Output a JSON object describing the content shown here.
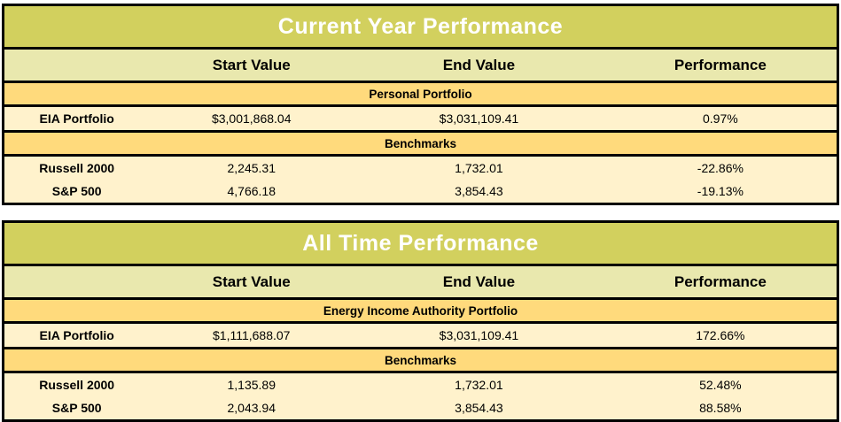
{
  "colors": {
    "title_bar": "#D2D05E",
    "title_text": "#FFFFFF",
    "column_header_bg": "#E9E8AE",
    "section_header_bg": "#FFDA7C",
    "data_row_bg": "#FFF2CC",
    "border": "#000000"
  },
  "tables": [
    {
      "title": "Current Year Performance",
      "columns": [
        "",
        "Start Value",
        "End Value",
        "Performance"
      ],
      "sections": [
        {
          "header": "Personal Portfolio",
          "rows": [
            {
              "label": "EIA Portfolio",
              "start": "$3,001,868.04",
              "end": "$3,031,109.41",
              "performance": "0.97%"
            }
          ]
        },
        {
          "header": "Benchmarks",
          "rows": [
            {
              "label": "Russell 2000",
              "start": "2,245.31",
              "end": "1,732.01",
              "performance": "-22.86%"
            },
            {
              "label": "S&P 500",
              "start": "4,766.18",
              "end": "3,854.43",
              "performance": "-19.13%"
            }
          ]
        }
      ]
    },
    {
      "title": "All Time Performance",
      "columns": [
        "",
        "Start Value",
        "End Value",
        "Performance"
      ],
      "sections": [
        {
          "header": "Energy Income Authority Portfolio",
          "rows": [
            {
              "label": "EIA Portfolio",
              "start": "$1,111,688.07",
              "end": "$3,031,109.41",
              "performance": "172.66%"
            }
          ]
        },
        {
          "header": "Benchmarks",
          "rows": [
            {
              "label": "Russell 2000",
              "start": "1,135.89",
              "end": "1,732.01",
              "performance": "52.48%"
            },
            {
              "label": "S&P 500",
              "start": "2,043.94",
              "end": "3,854.43",
              "performance": "88.58%"
            }
          ]
        }
      ]
    }
  ]
}
